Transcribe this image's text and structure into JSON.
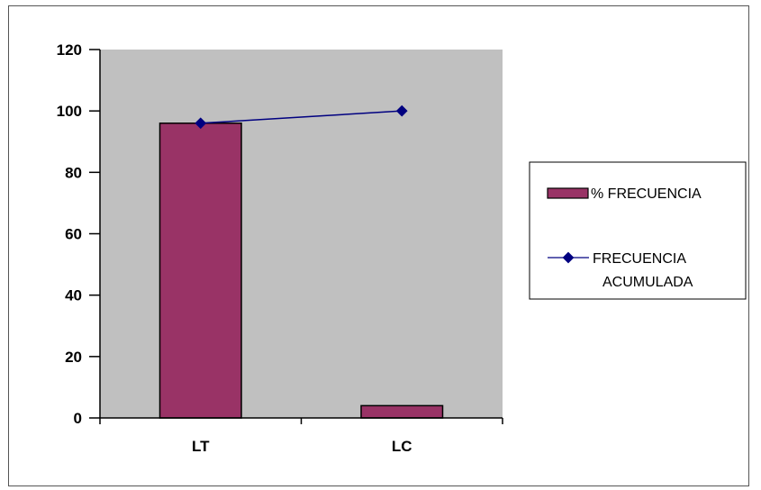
{
  "chart_data": {
    "type": "bar",
    "categories": [
      "LT",
      "LC"
    ],
    "series": [
      {
        "name": "% FRECUENCIA",
        "kind": "bar",
        "values": [
          96,
          4
        ],
        "color": "#993366"
      },
      {
        "name": "FRECUENCIA ACUMULADA",
        "name_lines": [
          "FRECUENCIA",
          "ACUMULADA"
        ],
        "kind": "line",
        "values": [
          96,
          100
        ],
        "color": "#000080"
      }
    ],
    "ylim": [
      0,
      120
    ],
    "yticks": [
      0,
      20,
      40,
      60,
      80,
      100,
      120
    ],
    "yticks_labels": [
      "0",
      "20",
      "40",
      "60",
      "80",
      "100",
      "120"
    ],
    "title": "",
    "xlabel": "",
    "ylabel": "",
    "plot_background": "#c0c0c0",
    "grid": false,
    "legend_position": "right"
  }
}
